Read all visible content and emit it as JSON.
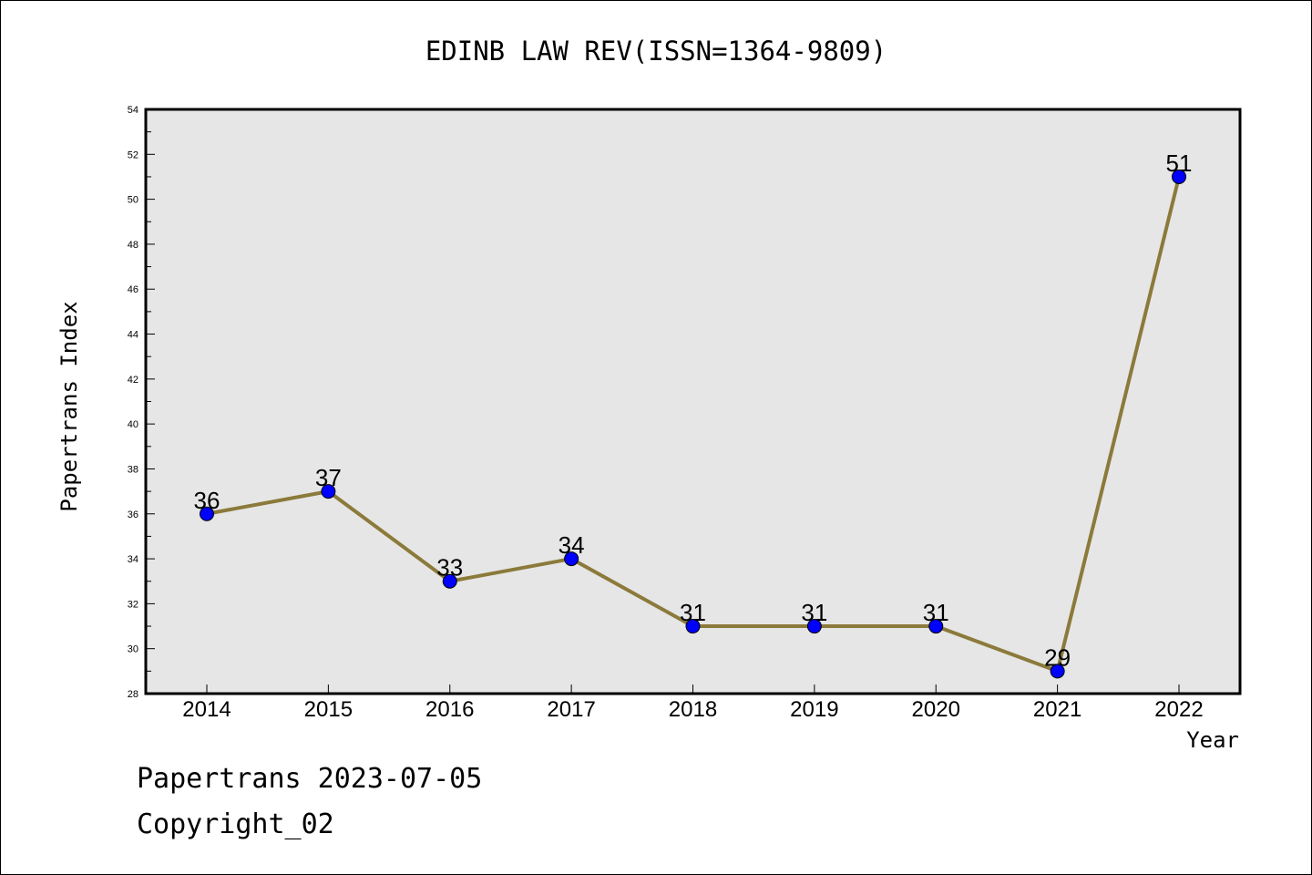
{
  "chart_data": {
    "type": "line",
    "title": "EDINB LAW REV(ISSN=1364-9809)",
    "xlabel": "Year",
    "ylabel": "Papertrans Index",
    "categories": [
      "2014",
      "2015",
      "2016",
      "2017",
      "2018",
      "2019",
      "2020",
      "2021",
      "2022"
    ],
    "series": [
      {
        "values": [
          36,
          37,
          33,
          34,
          31,
          31,
          31,
          29,
          51
        ]
      }
    ],
    "data_labels": [
      "36",
      "37",
      "33",
      "34",
      "31",
      "31",
      "31",
      "29",
      "51"
    ],
    "ylim": [
      28,
      54
    ],
    "yticks": [
      28,
      30,
      32,
      34,
      36,
      38,
      40,
      42,
      44,
      46,
      48,
      50,
      52,
      54
    ],
    "grid": false,
    "line_color": "#8b7a3a",
    "marker_color": "#0000ff",
    "plot_background": "#e6e6e6"
  },
  "footer": {
    "line1": "Papertrans 2023-07-05",
    "line2": "Copyright_02"
  }
}
